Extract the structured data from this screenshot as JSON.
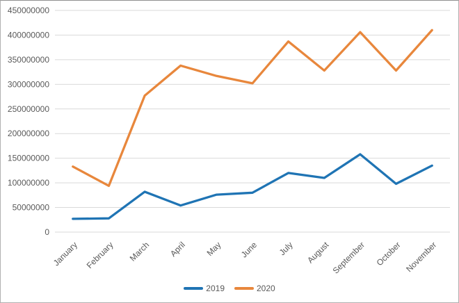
{
  "chart_data": {
    "type": "line",
    "title": "",
    "xlabel": "",
    "ylabel": "",
    "categories": [
      "January",
      "February",
      "March",
      "April",
      "May",
      "June",
      "July",
      "August",
      "September",
      "October",
      "November"
    ],
    "series": [
      {
        "name": "2019",
        "color": "#1f74b4",
        "values": [
          27000000,
          28000000,
          82000000,
          54000000,
          76000000,
          80000000,
          120000000,
          110000000,
          158000000,
          98000000,
          135000000
        ]
      },
      {
        "name": "2020",
        "color": "#e8873c",
        "values": [
          133000000,
          94000000,
          277000000,
          338000000,
          317000000,
          302000000,
          387000000,
          328000000,
          406000000,
          328000000,
          410000000
        ]
      }
    ],
    "ylim": [
      0,
      450000000
    ],
    "y_tick_step": 50000000,
    "y_tick_labels": [
      "0",
      "50000000",
      "100000000",
      "150000000",
      "200000000",
      "250000000",
      "300000000",
      "350000000",
      "400000000",
      "450000000"
    ],
    "grid": true,
    "legend_position": "bottom-center"
  },
  "styles": {
    "background": "#ffffff",
    "border_color": "#b0b0b0",
    "grid_color": "#d9d9d9",
    "tick_label_color": "#595959"
  }
}
